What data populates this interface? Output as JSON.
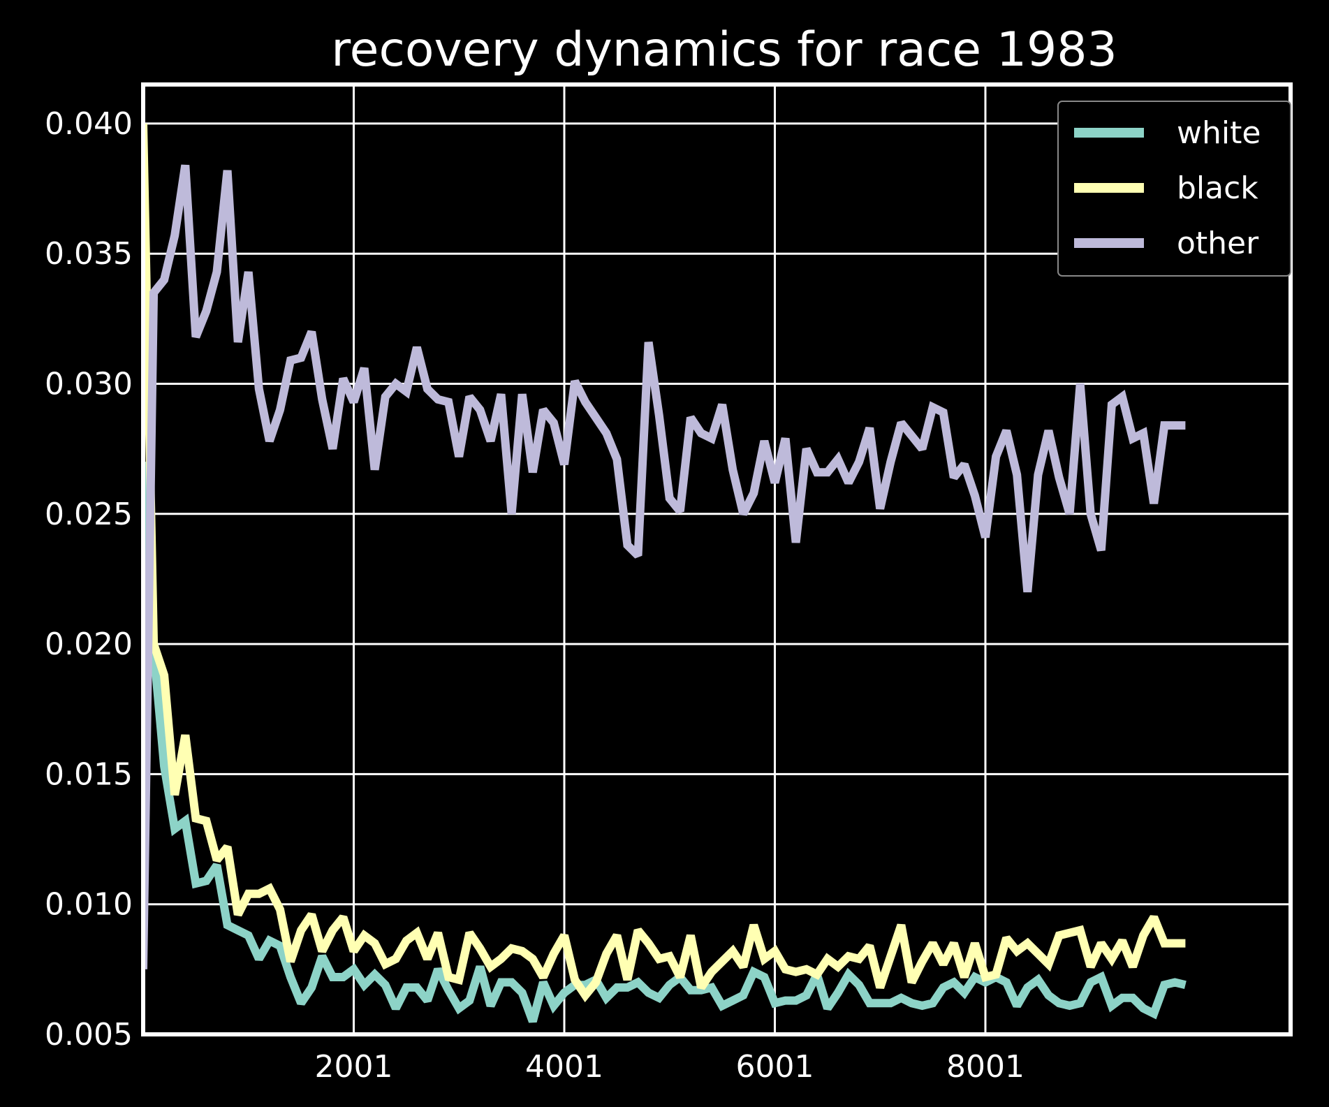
{
  "chart_data": {
    "type": "line",
    "title": "recovery dynamics for race 1983",
    "xlabel": "",
    "ylabel": "",
    "xlim": [
      1,
      10900
    ],
    "ylim": [
      0.005,
      0.0415
    ],
    "grid": true,
    "legend_position": "upper right",
    "xticks": [
      2001,
      4001,
      6001,
      8001
    ],
    "xtick_labels": [
      "2001",
      "4001",
      "6001",
      "8001"
    ],
    "yticks": [
      0.005,
      0.01,
      0.015,
      0.02,
      0.025,
      0.03,
      0.035,
      0.04
    ],
    "ytick_labels": [
      "0.005",
      "0.010",
      "0.015",
      "0.020",
      "0.025",
      "0.030",
      "0.035",
      "0.040"
    ],
    "x": [
      1,
      101,
      201,
      301,
      401,
      501,
      601,
      701,
      801,
      901,
      1001,
      1101,
      1201,
      1301,
      1401,
      1501,
      1601,
      1701,
      1801,
      1901,
      2001,
      2101,
      2201,
      2301,
      2401,
      2501,
      2601,
      2701,
      2801,
      2901,
      3001,
      3101,
      3201,
      3301,
      3401,
      3501,
      3601,
      3701,
      3801,
      3901,
      4001,
      4101,
      4201,
      4301,
      4401,
      4501,
      4601,
      4701,
      4801,
      4901,
      5001,
      5101,
      5201,
      5301,
      5401,
      5501,
      5601,
      5701,
      5801,
      5901,
      6001,
      6101,
      6201,
      6301,
      6401,
      6501,
      6601,
      6701,
      6801,
      6901,
      7001,
      7101,
      7201,
      7301,
      7401,
      7501,
      7601,
      7701,
      7801,
      7901,
      8001,
      8101,
      8201,
      8301,
      8401,
      8501,
      8601,
      8701,
      8801,
      8901,
      9001,
      9101,
      9201,
      9301,
      9401,
      9501,
      9601,
      9701,
      9801,
      9901
    ],
    "series": [
      {
        "name": "white",
        "color": "#8dd3c7",
        "values": [
          0.027,
          0.0198,
          0.0153,
          0.0129,
          0.0132,
          0.0108,
          0.0109,
          0.0115,
          0.0092,
          0.009,
          0.0088,
          0.0079,
          0.0086,
          0.0084,
          0.0072,
          0.0062,
          0.0068,
          0.008,
          0.0072,
          0.0072,
          0.0075,
          0.0069,
          0.0073,
          0.0069,
          0.006,
          0.0068,
          0.0068,
          0.0063,
          0.0075,
          0.0067,
          0.006,
          0.0063,
          0.0076,
          0.0061,
          0.007,
          0.007,
          0.0066,
          0.0055,
          0.007,
          0.0061,
          0.0066,
          0.0069,
          0.0069,
          0.0071,
          0.0064,
          0.0068,
          0.0068,
          0.007,
          0.0066,
          0.0064,
          0.0069,
          0.0072,
          0.0067,
          0.0067,
          0.0068,
          0.0061,
          0.0063,
          0.0065,
          0.0074,
          0.0072,
          0.0062,
          0.0063,
          0.0063,
          0.0065,
          0.0073,
          0.006,
          0.0066,
          0.0073,
          0.0069,
          0.0062,
          0.0062,
          0.0062,
          0.0064,
          0.0062,
          0.0061,
          0.0062,
          0.0068,
          0.007,
          0.0066,
          0.0072,
          0.007,
          0.0072,
          0.007,
          0.0061,
          0.0068,
          0.0071,
          0.0065,
          0.0062,
          0.0061,
          0.0062,
          0.007,
          0.0072,
          0.0061,
          0.0064,
          0.0064,
          0.006,
          0.0058,
          0.0069,
          0.007,
          0.0069
        ]
      },
      {
        "name": "black",
        "color": "#ffffb3",
        "values": [
          0.04,
          0.02,
          0.0188,
          0.0142,
          0.0165,
          0.0133,
          0.0132,
          0.0117,
          0.0122,
          0.0096,
          0.0104,
          0.0104,
          0.0106,
          0.0098,
          0.0078,
          0.009,
          0.0096,
          0.0082,
          0.009,
          0.0095,
          0.0082,
          0.0088,
          0.0085,
          0.0077,
          0.0079,
          0.0086,
          0.0089,
          0.0079,
          0.0089,
          0.0072,
          0.0071,
          0.0089,
          0.0083,
          0.0076,
          0.0079,
          0.0083,
          0.0082,
          0.0079,
          0.0072,
          0.0081,
          0.0088,
          0.0071,
          0.0065,
          0.007,
          0.0081,
          0.0088,
          0.0071,
          0.009,
          0.0085,
          0.0079,
          0.008,
          0.0072,
          0.0088,
          0.0068,
          0.0074,
          0.0078,
          0.0082,
          0.0076,
          0.0092,
          0.0079,
          0.0082,
          0.0075,
          0.0074,
          0.0075,
          0.0073,
          0.0079,
          0.0076,
          0.008,
          0.0079,
          0.0084,
          0.0068,
          0.008,
          0.0092,
          0.007,
          0.0078,
          0.0085,
          0.0077,
          0.0085,
          0.0072,
          0.0085,
          0.0072,
          0.0073,
          0.0087,
          0.0082,
          0.0085,
          0.0081,
          0.0077,
          0.0088,
          0.0089,
          0.009,
          0.0076,
          0.0085,
          0.0079,
          0.0086,
          0.0076,
          0.0088,
          0.0095,
          0.0085,
          0.0085,
          0.0085
        ]
      },
      {
        "name": "other",
        "color": "#bebada",
        "values": [
          0.0075,
          0.0335,
          0.034,
          0.0357,
          0.0384,
          0.0318,
          0.0328,
          0.0343,
          0.0382,
          0.0316,
          0.0343,
          0.0298,
          0.0278,
          0.029,
          0.0309,
          0.031,
          0.032,
          0.0294,
          0.0275,
          0.0302,
          0.0293,
          0.0306,
          0.0267,
          0.0295,
          0.03,
          0.0297,
          0.0314,
          0.0298,
          0.0294,
          0.0293,
          0.0272,
          0.0295,
          0.029,
          0.0278,
          0.0296,
          0.025,
          0.0296,
          0.0266,
          0.029,
          0.0285,
          0.0269,
          0.0301,
          0.0293,
          0.0287,
          0.0281,
          0.0271,
          0.0238,
          0.0234,
          0.0316,
          0.0288,
          0.0256,
          0.0251,
          0.0287,
          0.0281,
          0.0279,
          0.0292,
          0.0267,
          0.025,
          0.0258,
          0.0278,
          0.0262,
          0.0279,
          0.0239,
          0.0275,
          0.0266,
          0.0266,
          0.0271,
          0.0262,
          0.027,
          0.0283,
          0.0252,
          0.027,
          0.0285,
          0.028,
          0.0275,
          0.0291,
          0.0289,
          0.0264,
          0.0269,
          0.0257,
          0.0241,
          0.0272,
          0.0282,
          0.0265,
          0.022,
          0.0265,
          0.0282,
          0.0264,
          0.025,
          0.03,
          0.025,
          0.0236,
          0.0292,
          0.0295,
          0.0279,
          0.0281,
          0.0254,
          0.0284,
          0.0284,
          0.0284
        ]
      }
    ]
  }
}
